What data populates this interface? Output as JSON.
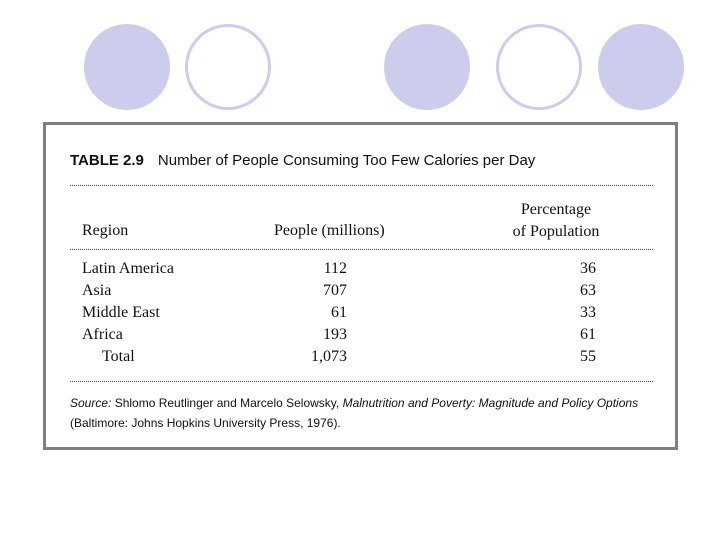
{
  "table": {
    "label": "TABLE 2.9",
    "title": "Number of People Consuming Too Few Calories per Day",
    "headers": {
      "region": "Region",
      "people": "People (millions)",
      "pct_line1": "Percentage",
      "pct_line2": "of Population"
    },
    "rows": [
      {
        "region": "Latin America",
        "people": "112",
        "pct": "36"
      },
      {
        "region": "Asia",
        "people": "707",
        "pct": "63"
      },
      {
        "region": "Middle East",
        "people": "61",
        "pct": "33"
      },
      {
        "region": "Africa",
        "people": "193",
        "pct": "61"
      },
      {
        "region": "Total",
        "people": "1,073",
        "pct": "55"
      }
    ],
    "source": {
      "prefix": "Source:",
      "authors": " Shlomo Reutlinger and Marcelo Selowsky, ",
      "book_title": "Malnutrition and Poverty: Magnitude and Policy Options",
      "publisher": " (Baltimore: Johns Hopkins University Press, 1976)."
    }
  },
  "decor": {
    "circle_fill": "#ccccec",
    "frame_color": "#7f7f7f"
  }
}
